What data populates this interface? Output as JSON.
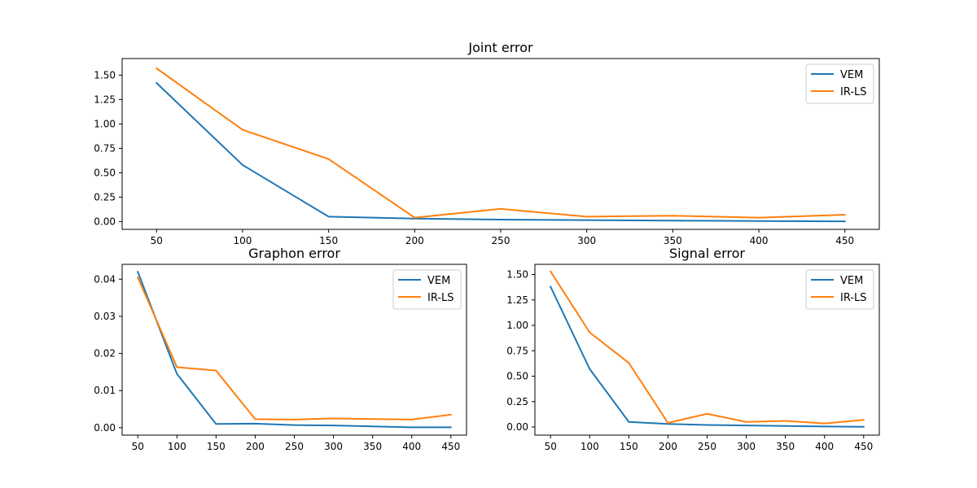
{
  "chart_data": [
    {
      "type": "line",
      "title": "Joint error",
      "xlabel": "",
      "ylabel": "",
      "x": [
        50,
        100,
        150,
        200,
        250,
        300,
        350,
        400,
        450
      ],
      "xlim": [
        30,
        470
      ],
      "ylim": [
        -0.08,
        1.67
      ],
      "xticks": [
        50,
        100,
        150,
        200,
        250,
        300,
        350,
        400,
        450
      ],
      "yticks": [
        0.0,
        0.25,
        0.5,
        0.75,
        1.0,
        1.25,
        1.5
      ],
      "ytick_labels": [
        "0.00",
        "0.25",
        "0.50",
        "0.75",
        "1.00",
        "1.25",
        "1.50"
      ],
      "grid": false,
      "legend": "top-right",
      "series": [
        {
          "name": "VEM",
          "color": "#1f77b4",
          "values": [
            1.42,
            0.58,
            0.05,
            0.03,
            0.02,
            0.015,
            0.01,
            0.005,
            0.002
          ]
        },
        {
          "name": "IR-LS",
          "color": "#ff7f0e",
          "values": [
            1.57,
            0.94,
            0.64,
            0.04,
            0.13,
            0.05,
            0.06,
            0.04,
            0.07
          ]
        }
      ]
    },
    {
      "type": "line",
      "title": "Graphon error",
      "xlabel": "",
      "ylabel": "",
      "x": [
        50,
        100,
        150,
        200,
        250,
        300,
        350,
        400,
        450
      ],
      "xlim": [
        30,
        470
      ],
      "ylim": [
        -0.002,
        0.044
      ],
      "xticks": [
        50,
        100,
        150,
        200,
        250,
        300,
        350,
        400,
        450
      ],
      "yticks": [
        0.0,
        0.01,
        0.02,
        0.03,
        0.04
      ],
      "ytick_labels": [
        "0.00",
        "0.01",
        "0.02",
        "0.03",
        "0.04"
      ],
      "grid": false,
      "legend": "top-right",
      "series": [
        {
          "name": "VEM",
          "color": "#1f77b4",
          "x": [
            50,
            100,
            150,
            200,
            250,
            300,
            400,
            450
          ],
          "values": [
            0.042,
            0.0145,
            0.001,
            0.0011,
            0.0007,
            0.0006,
            0.0001,
            0.0001
          ]
        },
        {
          "name": "IR-LS",
          "color": "#ff7f0e",
          "x": [
            50,
            100,
            150,
            200,
            250,
            300,
            400,
            450
          ],
          "values": [
            0.0405,
            0.0163,
            0.0154,
            0.0023,
            0.0022,
            0.0025,
            0.0022,
            0.0035
          ]
        }
      ]
    },
    {
      "type": "line",
      "title": "Signal error",
      "xlabel": "",
      "ylabel": "",
      "x": [
        50,
        100,
        150,
        200,
        250,
        300,
        350,
        400,
        450
      ],
      "xlim": [
        30,
        470
      ],
      "ylim": [
        -0.08,
        1.6
      ],
      "xticks": [
        50,
        100,
        150,
        200,
        250,
        300,
        350,
        400,
        450
      ],
      "yticks": [
        0.0,
        0.25,
        0.5,
        0.75,
        1.0,
        1.25,
        1.5
      ],
      "ytick_labels": [
        "0.00",
        "0.25",
        "0.50",
        "0.75",
        "1.00",
        "1.25",
        "1.50"
      ],
      "grid": false,
      "legend": "top-right",
      "series": [
        {
          "name": "VEM",
          "color": "#1f77b4",
          "values": [
            1.38,
            0.57,
            0.05,
            0.03,
            0.02,
            0.015,
            0.01,
            0.005,
            0.002
          ]
        },
        {
          "name": "IR-LS",
          "color": "#ff7f0e",
          "values": [
            1.53,
            0.93,
            0.63,
            0.04,
            0.13,
            0.05,
            0.06,
            0.035,
            0.07
          ]
        }
      ]
    }
  ]
}
